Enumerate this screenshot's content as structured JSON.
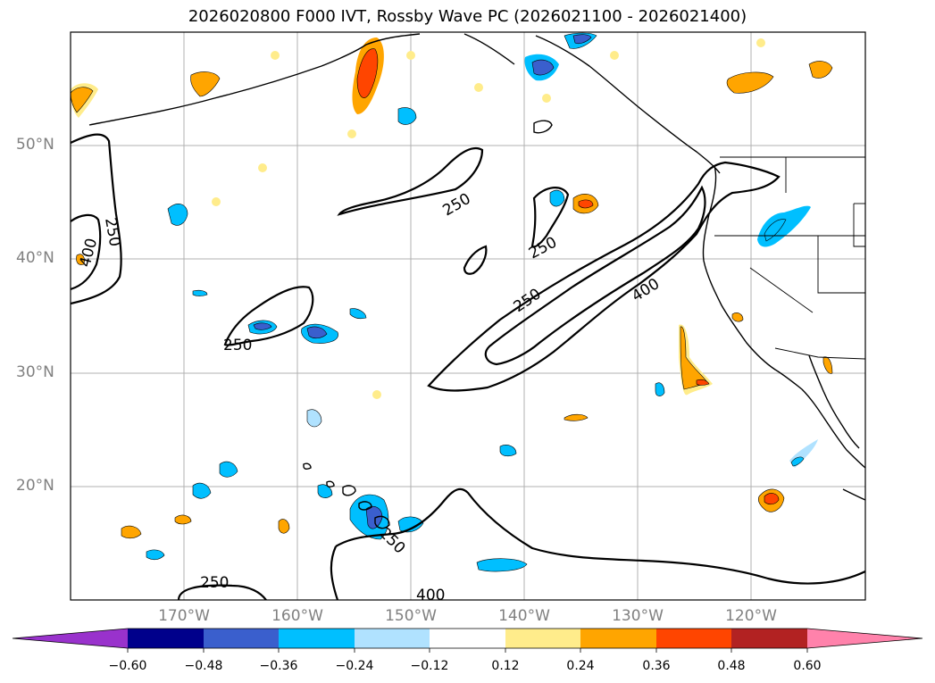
{
  "title": "2026020800 F000 IVT, Rossby Wave PC (2026021100 - 2026021400)",
  "map": {
    "lat_labels": [
      "50°N",
      "40°N",
      "30°N",
      "20°N"
    ],
    "lon_labels": [
      "170°W",
      "160°W",
      "150°W",
      "140°W",
      "130°W",
      "120°W"
    ],
    "contour_labels": {
      "c250": "250",
      "c400": "400"
    }
  },
  "colorbar": {
    "ticks": [
      "−0.60",
      "−0.48",
      "−0.36",
      "−0.24",
      "−0.12",
      "0.12",
      "0.24",
      "0.36",
      "0.48",
      "0.60"
    ],
    "colors": [
      "#9932cc",
      "#00008b",
      "#3a5fcd",
      "#00bfff",
      "#b0e2ff",
      "#ffffff",
      "#ffec8b",
      "#ffa500",
      "#ff4500",
      "#b22222",
      "#ff82ab"
    ]
  }
}
